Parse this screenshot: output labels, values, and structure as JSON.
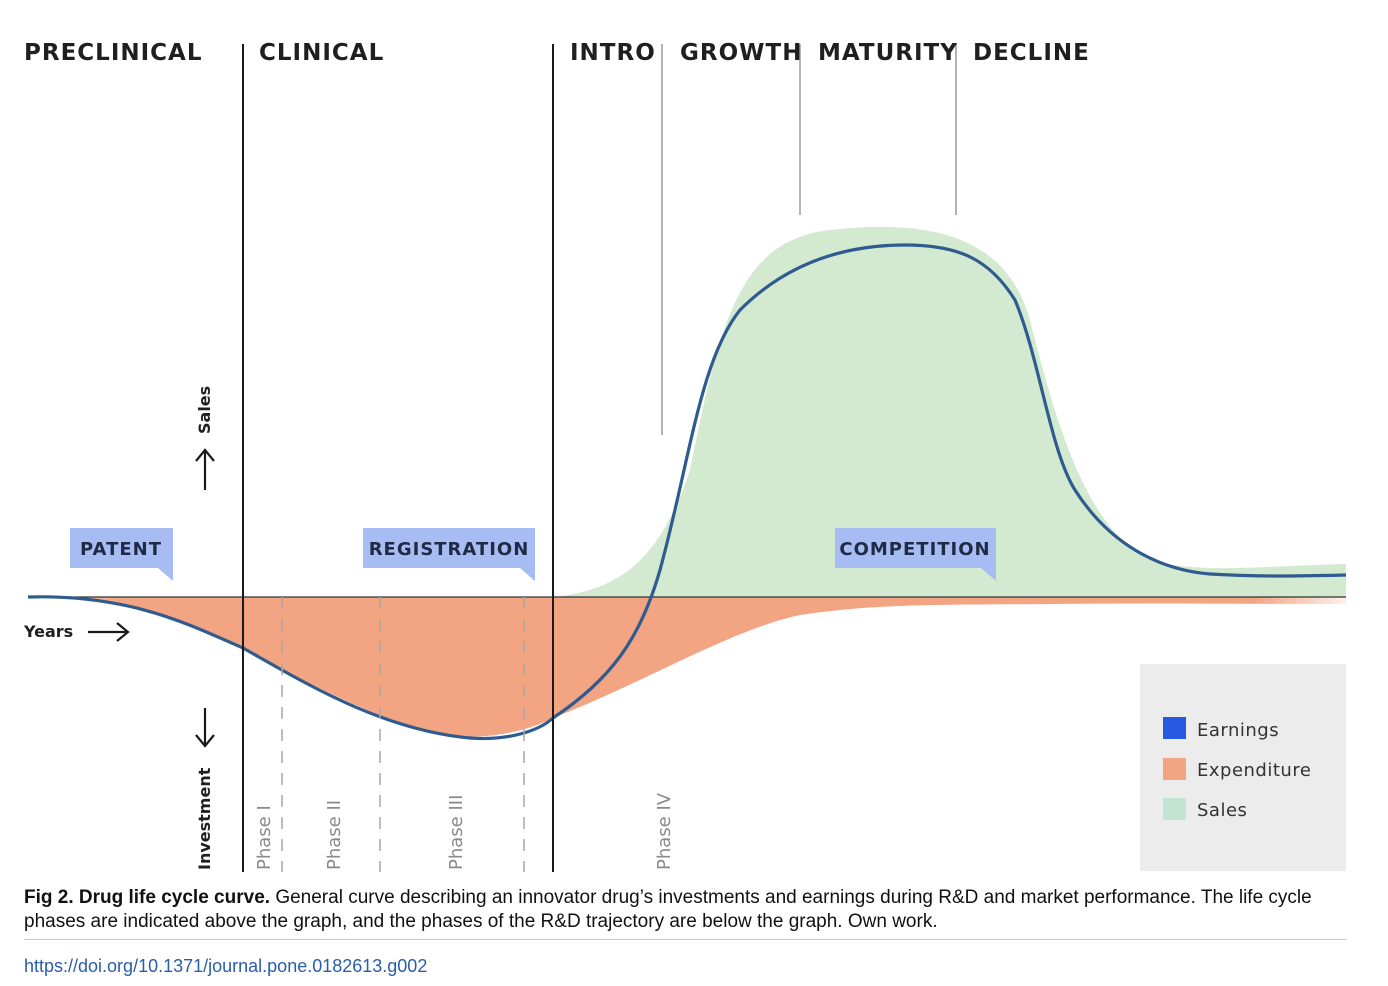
{
  "colors": {
    "earnings": "#2f5b8f",
    "expenditure": "#f3a483",
    "sales": "#d3ead1",
    "tag": "#a6bcf3",
    "legend_earnings": "#2758e0",
    "legend_expenditure": "#f3a483",
    "legend_sales": "#c4e4d3",
    "legend_bg": "#ececec"
  },
  "stages": [
    "PRECLINICAL",
    "CLINICAL",
    "INTRO",
    "GROWTH",
    "MATURITY",
    "DECLINE"
  ],
  "rd_phases": [
    "Phase I",
    "Phase II",
    "Phase III",
    "Phase IV"
  ],
  "tags": [
    "PATENT",
    "REGISTRATION",
    "COMPETITION"
  ],
  "axis": {
    "sales": "Sales",
    "investment": "Investment",
    "years": "Years"
  },
  "legend": [
    {
      "label": "Earnings",
      "color": "#2758e0"
    },
    {
      "label": "Expenditure",
      "color": "#f3a483"
    },
    {
      "label": "Sales",
      "color": "#c4e4d3"
    }
  ],
  "caption": {
    "title": "Fig 2.  Drug life cycle curve.",
    "text": " General curve describing an innovator drug’s investments and earnings during R&D and market performance. The life cycle phases are indicated above the graph, and the phases of the R&D trajectory are below the graph. Own work."
  },
  "doi": "https://doi.org/10.1371/journal.pone.0182613.g002"
}
